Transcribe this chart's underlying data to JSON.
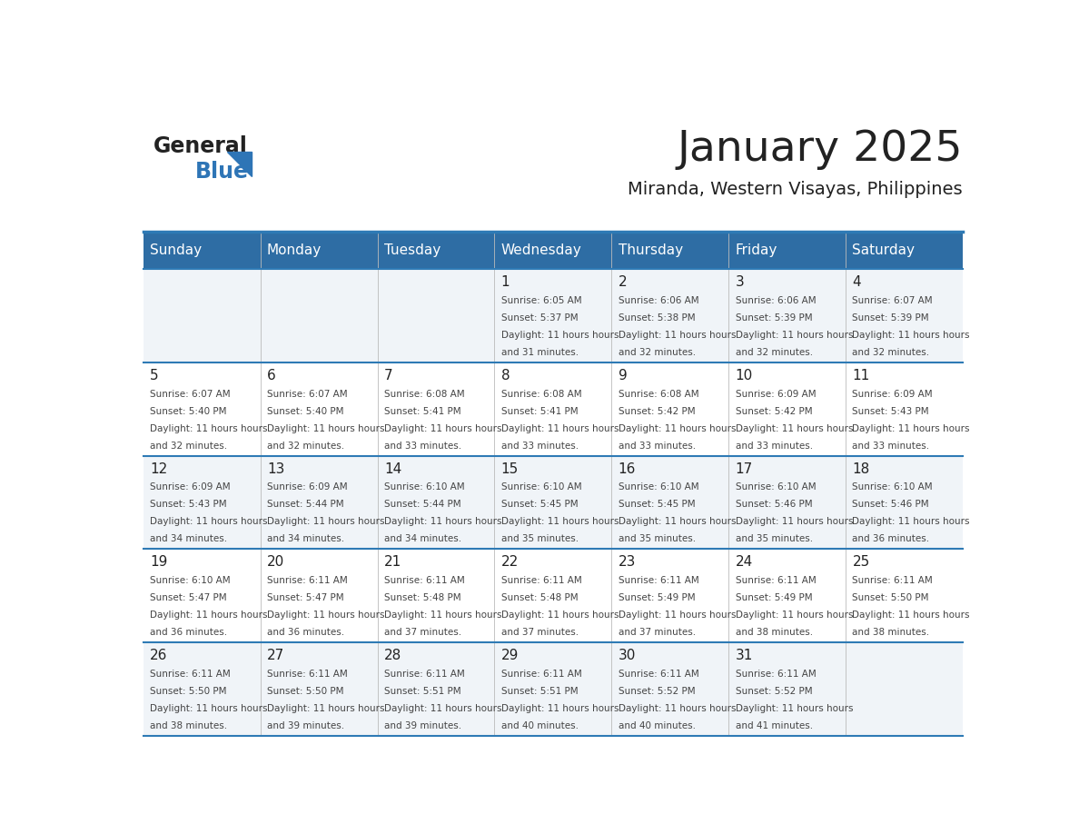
{
  "title": "January 2025",
  "subtitle": "Miranda, Western Visayas, Philippines",
  "days_of_week": [
    "Sunday",
    "Monday",
    "Tuesday",
    "Wednesday",
    "Thursday",
    "Friday",
    "Saturday"
  ],
  "header_bg": "#2e6da4",
  "header_text_color": "#ffffff",
  "row_bg": [
    "#f0f4f8",
    "#ffffff",
    "#f0f4f8",
    "#ffffff",
    "#f0f4f8"
  ],
  "divider_color": "#2e7ab5",
  "text_color": "#444444",
  "day_num_color": "#222222",
  "logo_general_color": "#222222",
  "logo_blue_color": "#2e75b6",
  "weeks": [
    [
      {
        "day": "",
        "sunrise": "",
        "sunset": "",
        "daylight": ""
      },
      {
        "day": "",
        "sunrise": "",
        "sunset": "",
        "daylight": ""
      },
      {
        "day": "",
        "sunrise": "",
        "sunset": "",
        "daylight": ""
      },
      {
        "day": "1",
        "sunrise": "6:05 AM",
        "sunset": "5:37 PM",
        "daylight": "11 hours and 31 minutes."
      },
      {
        "day": "2",
        "sunrise": "6:06 AM",
        "sunset": "5:38 PM",
        "daylight": "11 hours and 32 minutes."
      },
      {
        "day": "3",
        "sunrise": "6:06 AM",
        "sunset": "5:39 PM",
        "daylight": "11 hours and 32 minutes."
      },
      {
        "day": "4",
        "sunrise": "6:07 AM",
        "sunset": "5:39 PM",
        "daylight": "11 hours and 32 minutes."
      }
    ],
    [
      {
        "day": "5",
        "sunrise": "6:07 AM",
        "sunset": "5:40 PM",
        "daylight": "11 hours and 32 minutes."
      },
      {
        "day": "6",
        "sunrise": "6:07 AM",
        "sunset": "5:40 PM",
        "daylight": "11 hours and 32 minutes."
      },
      {
        "day": "7",
        "sunrise": "6:08 AM",
        "sunset": "5:41 PM",
        "daylight": "11 hours and 33 minutes."
      },
      {
        "day": "8",
        "sunrise": "6:08 AM",
        "sunset": "5:41 PM",
        "daylight": "11 hours and 33 minutes."
      },
      {
        "day": "9",
        "sunrise": "6:08 AM",
        "sunset": "5:42 PM",
        "daylight": "11 hours and 33 minutes."
      },
      {
        "day": "10",
        "sunrise": "6:09 AM",
        "sunset": "5:42 PM",
        "daylight": "11 hours and 33 minutes."
      },
      {
        "day": "11",
        "sunrise": "6:09 AM",
        "sunset": "5:43 PM",
        "daylight": "11 hours and 33 minutes."
      }
    ],
    [
      {
        "day": "12",
        "sunrise": "6:09 AM",
        "sunset": "5:43 PM",
        "daylight": "11 hours and 34 minutes."
      },
      {
        "day": "13",
        "sunrise": "6:09 AM",
        "sunset": "5:44 PM",
        "daylight": "11 hours and 34 minutes."
      },
      {
        "day": "14",
        "sunrise": "6:10 AM",
        "sunset": "5:44 PM",
        "daylight": "11 hours and 34 minutes."
      },
      {
        "day": "15",
        "sunrise": "6:10 AM",
        "sunset": "5:45 PM",
        "daylight": "11 hours and 35 minutes."
      },
      {
        "day": "16",
        "sunrise": "6:10 AM",
        "sunset": "5:45 PM",
        "daylight": "11 hours and 35 minutes."
      },
      {
        "day": "17",
        "sunrise": "6:10 AM",
        "sunset": "5:46 PM",
        "daylight": "11 hours and 35 minutes."
      },
      {
        "day": "18",
        "sunrise": "6:10 AM",
        "sunset": "5:46 PM",
        "daylight": "11 hours and 36 minutes."
      }
    ],
    [
      {
        "day": "19",
        "sunrise": "6:10 AM",
        "sunset": "5:47 PM",
        "daylight": "11 hours and 36 minutes."
      },
      {
        "day": "20",
        "sunrise": "6:11 AM",
        "sunset": "5:47 PM",
        "daylight": "11 hours and 36 minutes."
      },
      {
        "day": "21",
        "sunrise": "6:11 AM",
        "sunset": "5:48 PM",
        "daylight": "11 hours and 37 minutes."
      },
      {
        "day": "22",
        "sunrise": "6:11 AM",
        "sunset": "5:48 PM",
        "daylight": "11 hours and 37 minutes."
      },
      {
        "day": "23",
        "sunrise": "6:11 AM",
        "sunset": "5:49 PM",
        "daylight": "11 hours and 37 minutes."
      },
      {
        "day": "24",
        "sunrise": "6:11 AM",
        "sunset": "5:49 PM",
        "daylight": "11 hours and 38 minutes."
      },
      {
        "day": "25",
        "sunrise": "6:11 AM",
        "sunset": "5:50 PM",
        "daylight": "11 hours and 38 minutes."
      }
    ],
    [
      {
        "day": "26",
        "sunrise": "6:11 AM",
        "sunset": "5:50 PM",
        "daylight": "11 hours and 38 minutes."
      },
      {
        "day": "27",
        "sunrise": "6:11 AM",
        "sunset": "5:50 PM",
        "daylight": "11 hours and 39 minutes."
      },
      {
        "day": "28",
        "sunrise": "6:11 AM",
        "sunset": "5:51 PM",
        "daylight": "11 hours and 39 minutes."
      },
      {
        "day": "29",
        "sunrise": "6:11 AM",
        "sunset": "5:51 PM",
        "daylight": "11 hours and 40 minutes."
      },
      {
        "day": "30",
        "sunrise": "6:11 AM",
        "sunset": "5:52 PM",
        "daylight": "11 hours and 40 minutes."
      },
      {
        "day": "31",
        "sunrise": "6:11 AM",
        "sunset": "5:52 PM",
        "daylight": "11 hours and 41 minutes."
      },
      {
        "day": "",
        "sunrise": "",
        "sunset": "",
        "daylight": ""
      }
    ]
  ]
}
